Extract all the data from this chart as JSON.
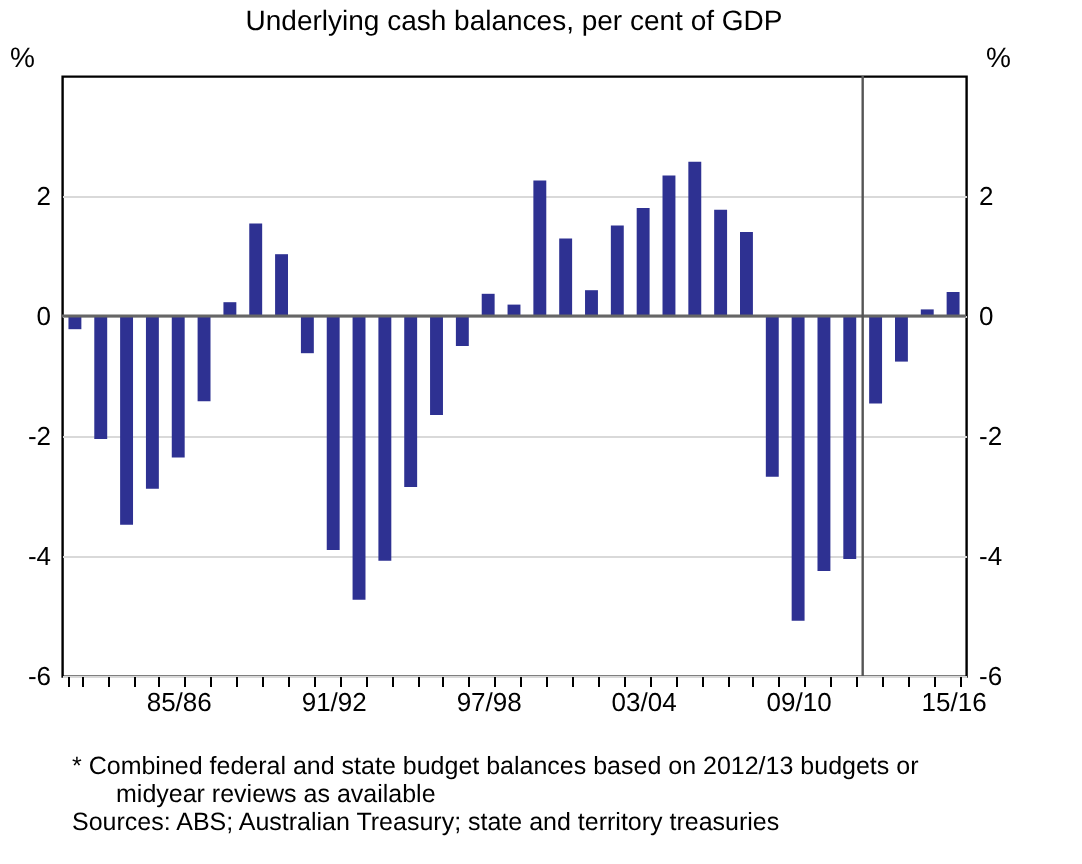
{
  "chart_data": {
    "type": "bar",
    "title": "Underlying cash balances, per cent of GDP",
    "ylabel": "%",
    "y2label": "%",
    "categories": [
      null,
      null,
      null,
      null,
      "85/86",
      null,
      null,
      null,
      null,
      null,
      "91/92",
      null,
      null,
      null,
      null,
      null,
      "97/98",
      null,
      null,
      null,
      null,
      null,
      "03/04",
      null,
      null,
      null,
      null,
      null,
      "09/10",
      null,
      null,
      null,
      null,
      null,
      "15/16"
    ],
    "series": [
      {
        "color": "#2e3192",
        "values": [
          -0.22,
          -2.05,
          -3.48,
          -2.88,
          -2.36,
          -1.42,
          0.23,
          1.54,
          1.03,
          -0.62,
          -3.9,
          -4.73,
          -4.08,
          -2.85,
          -1.65,
          -0.5,
          0.37,
          0.19,
          2.26,
          1.29,
          0.43,
          1.51,
          1.8,
          2.34,
          2.57,
          1.77,
          1.4,
          -2.68,
          -5.08,
          -4.25,
          -4.05,
          -1.46,
          -0.76,
          0.11,
          0.4
        ]
      }
    ],
    "ylim": [
      -6,
      4
    ],
    "yticks": [
      -6,
      -4,
      -2,
      0,
      2
    ],
    "y2lim": [
      -6,
      4
    ],
    "y2ticks": [
      -6,
      -4,
      -2,
      0,
      2
    ],
    "grid": "y",
    "ref_lines": [
      {
        "axis": "y",
        "value": 0,
        "color": "#666666"
      }
    ],
    "annotations": [
      "*    Combined federal and state budget balances based on 2012/13 budgets or midyear reviews as available",
      "Sources: ABS; Australian Treasury; state and territory treasuries"
    ]
  }
}
